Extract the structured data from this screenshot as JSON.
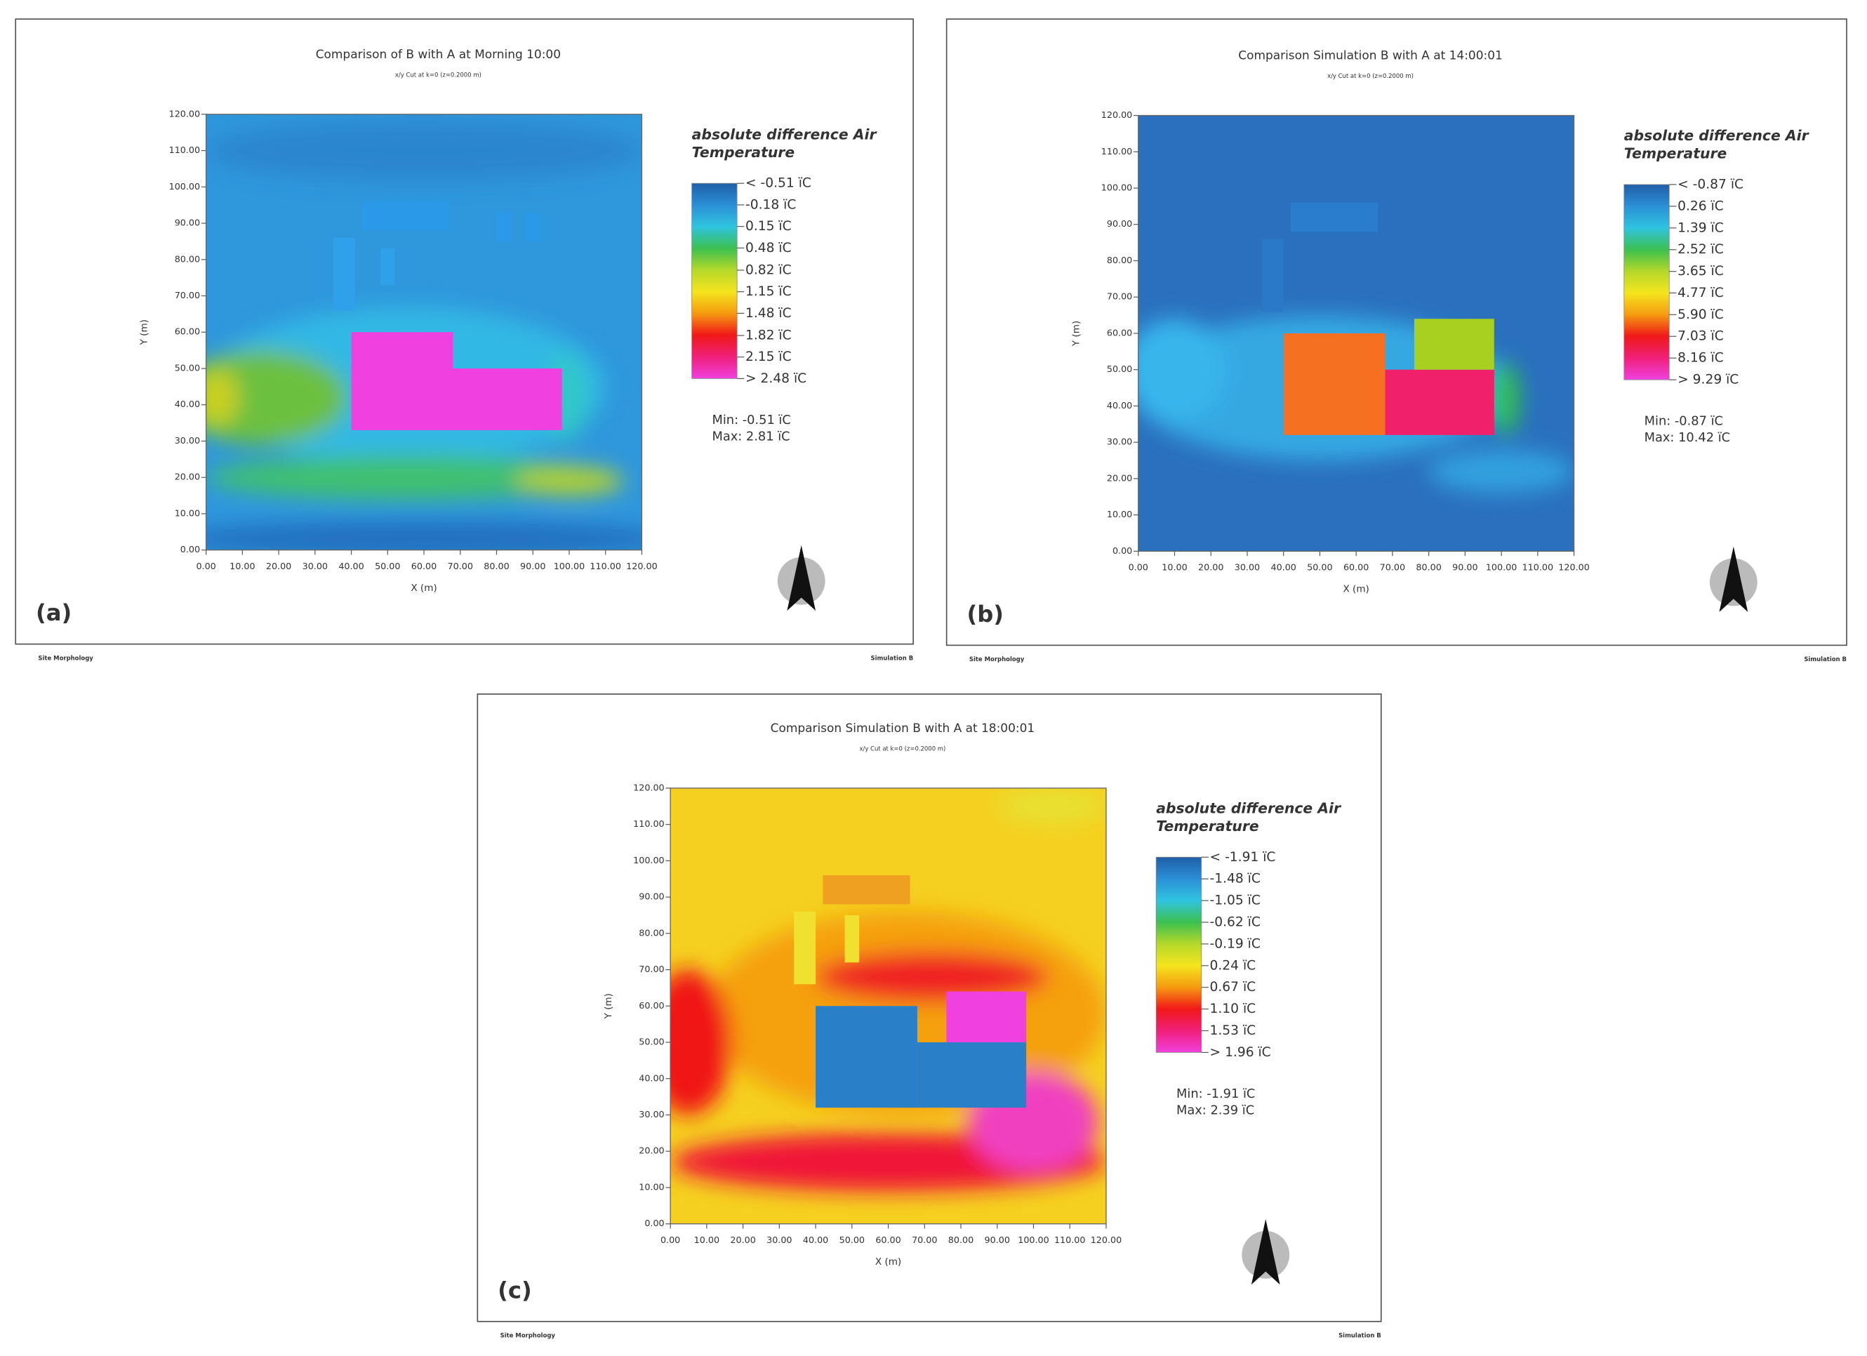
{
  "chart_data": [
    {
      "type": "heatmap",
      "panel_label": "(a)",
      "title": "Comparison of B with A at Morning 10:00",
      "subtitle": "x/y Cut at k=0 (z=0.2000 m)",
      "xlabel": "X (m)",
      "ylabel": "Y (m)",
      "xlim": [
        0,
        120
      ],
      "ylim": [
        0,
        120
      ],
      "xticks": [
        {
          "value": 0,
          "label": "0.00"
        },
        {
          "value": 10,
          "label": "10.00"
        },
        {
          "value": 20,
          "label": "20.00"
        },
        {
          "value": 30,
          "label": "30.00"
        },
        {
          "value": 40,
          "label": "40.00"
        },
        {
          "value": 50,
          "label": "50.00"
        },
        {
          "value": 60,
          "label": "60.00"
        },
        {
          "value": 70,
          "label": "70.00"
        },
        {
          "value": 80,
          "label": "80.00"
        },
        {
          "value": 90,
          "label": "90.00"
        },
        {
          "value": 100,
          "label": "100.00"
        },
        {
          "value": 110,
          "label": "110.00"
        },
        {
          "value": 120,
          "label": "120.00"
        }
      ],
      "yticks": [
        {
          "value": 0,
          "label": "0.00"
        },
        {
          "value": 10,
          "label": "10.00"
        },
        {
          "value": 20,
          "label": "20.00"
        },
        {
          "value": 30,
          "label": "30.00"
        },
        {
          "value": 40,
          "label": "40.00"
        },
        {
          "value": 50,
          "label": "50.00"
        },
        {
          "value": 60,
          "label": "60.00"
        },
        {
          "value": 70,
          "label": "70.00"
        },
        {
          "value": 80,
          "label": "80.00"
        },
        {
          "value": 90,
          "label": "90.00"
        },
        {
          "value": 100,
          "label": "100.00"
        },
        {
          "value": 110,
          "label": "110.00"
        },
        {
          "value": 120,
          "label": "120.00"
        }
      ],
      "legend_title": "absolute difference Air Temperature",
      "colorbar_ticks": [
        {
          "value": -0.51,
          "label": "< -0.51 ïC"
        },
        {
          "value": -0.18,
          "label": "-0.18 ïC"
        },
        {
          "value": 0.15,
          "label": "0.15 ïC"
        },
        {
          "value": 0.48,
          "label": "0.48 ïC"
        },
        {
          "value": 0.82,
          "label": "0.82 ïC"
        },
        {
          "value": 1.15,
          "label": "1.15 ïC"
        },
        {
          "value": 1.48,
          "label": "1.48 ïC"
        },
        {
          "value": 1.82,
          "label": "1.82 ïC"
        },
        {
          "value": 2.15,
          "label": "2.15 ïC"
        },
        {
          "value": 2.48,
          "label": "> 2.48 ïC"
        }
      ],
      "colors": [
        "#1f5fa8",
        "#2b8fd6",
        "#2fc4e0",
        "#3cc050",
        "#b4d82a",
        "#f5e51e",
        "#f59a10",
        "#f01818",
        "#f0207a",
        "#f040e0"
      ],
      "min": {
        "value": -0.51,
        "label": "Min: -0.51 ïC"
      },
      "max": {
        "value": 2.81,
        "label": "Max: 2.81 ïC"
      },
      "footer_left": "Site Morphology",
      "footer_right": "Simulation B"
    },
    {
      "type": "heatmap",
      "panel_label": "(b)",
      "title": "Comparison Simulation B with A at 14:00:01",
      "subtitle": "x/y Cut at k=0 (z=0.2000 m)",
      "xlabel": "X (m)",
      "ylabel": "Y (m)",
      "xlim": [
        0,
        120
      ],
      "ylim": [
        0,
        120
      ],
      "xticks": [
        {
          "value": 0,
          "label": "0.00"
        },
        {
          "value": 10,
          "label": "10.00"
        },
        {
          "value": 20,
          "label": "20.00"
        },
        {
          "value": 30,
          "label": "30.00"
        },
        {
          "value": 40,
          "label": "40.00"
        },
        {
          "value": 50,
          "label": "50.00"
        },
        {
          "value": 60,
          "label": "60.00"
        },
        {
          "value": 70,
          "label": "70.00"
        },
        {
          "value": 80,
          "label": "80.00"
        },
        {
          "value": 90,
          "label": "90.00"
        },
        {
          "value": 100,
          "label": "100.00"
        },
        {
          "value": 110,
          "label": "110.00"
        },
        {
          "value": 120,
          "label": "120.00"
        }
      ],
      "yticks": [
        {
          "value": 0,
          "label": "0.00"
        },
        {
          "value": 10,
          "label": "10.00"
        },
        {
          "value": 20,
          "label": "20.00"
        },
        {
          "value": 30,
          "label": "30.00"
        },
        {
          "value": 40,
          "label": "40.00"
        },
        {
          "value": 50,
          "label": "50.00"
        },
        {
          "value": 60,
          "label": "60.00"
        },
        {
          "value": 70,
          "label": "70.00"
        },
        {
          "value": 80,
          "label": "80.00"
        },
        {
          "value": 90,
          "label": "90.00"
        },
        {
          "value": 100,
          "label": "100.00"
        },
        {
          "value": 110,
          "label": "110.00"
        },
        {
          "value": 120,
          "label": "120.00"
        }
      ],
      "legend_title": "absolute difference Air Temperature",
      "colorbar_ticks": [
        {
          "value": -0.87,
          "label": "< -0.87 ïC"
        },
        {
          "value": 0.26,
          "label": "0.26 ïC"
        },
        {
          "value": 1.39,
          "label": "1.39 ïC"
        },
        {
          "value": 2.52,
          "label": "2.52 ïC"
        },
        {
          "value": 3.65,
          "label": "3.65 ïC"
        },
        {
          "value": 4.77,
          "label": "4.77 ïC"
        },
        {
          "value": 5.9,
          "label": "5.90 ïC"
        },
        {
          "value": 7.03,
          "label": "7.03 ïC"
        },
        {
          "value": 8.16,
          "label": "8.16 ïC"
        },
        {
          "value": 9.29,
          "label": "> 9.29 ïC"
        }
      ],
      "colors": [
        "#1f5fa8",
        "#2b8fd6",
        "#2fc4e0",
        "#3cc050",
        "#b4d82a",
        "#f5e51e",
        "#f59a10",
        "#f01818",
        "#f0207a",
        "#f040e0"
      ],
      "min": {
        "value": -0.87,
        "label": "Min: -0.87 ïC"
      },
      "max": {
        "value": 10.42,
        "label": "Max: 10.42 ïC"
      },
      "footer_left": "Site Morphology",
      "footer_right": "Simulation B"
    },
    {
      "type": "heatmap",
      "panel_label": "(c)",
      "title": "Comparison Simulation B with A at 18:00:01",
      "subtitle": "x/y Cut at k=0 (z=0.2000 m)",
      "xlabel": "X (m)",
      "ylabel": "Y (m)",
      "xlim": [
        0,
        120
      ],
      "ylim": [
        0,
        120
      ],
      "xticks": [
        {
          "value": 0,
          "label": "0.00"
        },
        {
          "value": 10,
          "label": "10.00"
        },
        {
          "value": 20,
          "label": "20.00"
        },
        {
          "value": 30,
          "label": "30.00"
        },
        {
          "value": 40,
          "label": "40.00"
        },
        {
          "value": 50,
          "label": "50.00"
        },
        {
          "value": 60,
          "label": "60.00"
        },
        {
          "value": 70,
          "label": "70.00"
        },
        {
          "value": 80,
          "label": "80.00"
        },
        {
          "value": 90,
          "label": "90.00"
        },
        {
          "value": 100,
          "label": "100.00"
        },
        {
          "value": 110,
          "label": "110.00"
        },
        {
          "value": 120,
          "label": "120.00"
        }
      ],
      "yticks": [
        {
          "value": 0,
          "label": "0.00"
        },
        {
          "value": 10,
          "label": "10.00"
        },
        {
          "value": 20,
          "label": "20.00"
        },
        {
          "value": 30,
          "label": "30.00"
        },
        {
          "value": 40,
          "label": "40.00"
        },
        {
          "value": 50,
          "label": "50.00"
        },
        {
          "value": 60,
          "label": "60.00"
        },
        {
          "value": 70,
          "label": "70.00"
        },
        {
          "value": 80,
          "label": "80.00"
        },
        {
          "value": 90,
          "label": "90.00"
        },
        {
          "value": 100,
          "label": "100.00"
        },
        {
          "value": 110,
          "label": "110.00"
        },
        {
          "value": 120,
          "label": "120.00"
        }
      ],
      "legend_title": "absolute difference Air Temperature",
      "colorbar_ticks": [
        {
          "value": -1.91,
          "label": "< -1.91 ïC"
        },
        {
          "value": -1.48,
          "label": "-1.48 ïC"
        },
        {
          "value": -1.05,
          "label": "-1.05 ïC"
        },
        {
          "value": -0.62,
          "label": "-0.62 ïC"
        },
        {
          "value": -0.19,
          "label": "-0.19 ïC"
        },
        {
          "value": 0.24,
          "label": "0.24 ïC"
        },
        {
          "value": 0.67,
          "label": "0.67 ïC"
        },
        {
          "value": 1.1,
          "label": "1.10 ïC"
        },
        {
          "value": 1.53,
          "label": "1.53 ïC"
        },
        {
          "value": 1.96,
          "label": "> 1.96 ïC"
        }
      ],
      "colors": [
        "#1f5fa8",
        "#2b8fd6",
        "#2fc4e0",
        "#3cc050",
        "#b4d82a",
        "#f5e51e",
        "#f59a10",
        "#f01818",
        "#f0207a",
        "#f040e0"
      ],
      "min": {
        "value": -1.91,
        "label": "Min: -1.91 ïC"
      },
      "max": {
        "value": 2.39,
        "label": "Max: 2.39 ïC"
      },
      "footer_left": "Site Morphology",
      "footer_right": "Simulation B"
    }
  ]
}
